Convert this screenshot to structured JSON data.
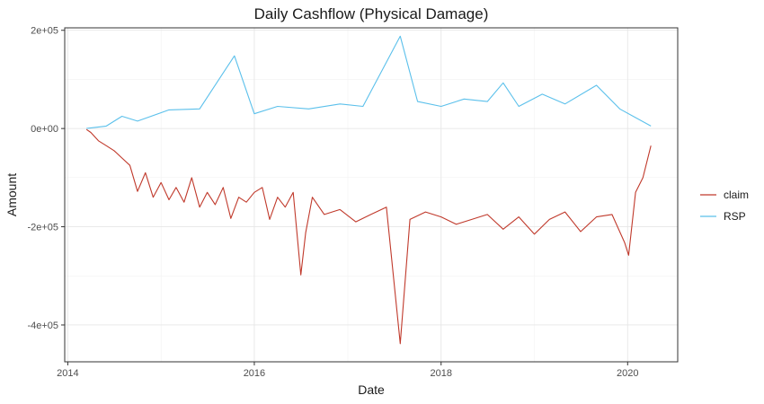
{
  "chart_data": {
    "type": "line",
    "title": "Daily Cashflow (Physical Damage)",
    "xlabel": "Date",
    "ylabel": "Amount",
    "x_range": [
      "2013-12-20",
      "2020-07-15"
    ],
    "ylim": [
      -475000,
      205000
    ],
    "x_ticks": [
      {
        "date": "2014-01-01",
        "label": "2014"
      },
      {
        "date": "2016-01-01",
        "label": "2016"
      },
      {
        "date": "2018-01-01",
        "label": "2018"
      },
      {
        "date": "2020-01-01",
        "label": "2020"
      }
    ],
    "y_ticks": [
      {
        "value": 200000,
        "label": "2e+05"
      },
      {
        "value": 0,
        "label": "0e+00"
      },
      {
        "value": -200000,
        "label": "-2e+05"
      },
      {
        "value": -400000,
        "label": "-4e+05"
      }
    ],
    "grid": true,
    "legend_position": "right",
    "series": [
      {
        "name": "claim",
        "color": "#C0392B",
        "points": [
          [
            "2014-03-15",
            -2000
          ],
          [
            "2014-04-01",
            -8000
          ],
          [
            "2014-05-01",
            -25000
          ],
          [
            "2014-06-01",
            -35000
          ],
          [
            "2014-07-01",
            -45000
          ],
          [
            "2014-08-01",
            -60000
          ],
          [
            "2014-09-01",
            -75000
          ],
          [
            "2014-10-01",
            -128000
          ],
          [
            "2014-11-01",
            -90000
          ],
          [
            "2014-12-01",
            -140000
          ],
          [
            "2015-01-01",
            -110000
          ],
          [
            "2015-02-01",
            -145000
          ],
          [
            "2015-03-01",
            -120000
          ],
          [
            "2015-04-01",
            -150000
          ],
          [
            "2015-05-01",
            -100000
          ],
          [
            "2015-06-01",
            -160000
          ],
          [
            "2015-07-01",
            -130000
          ],
          [
            "2015-08-01",
            -155000
          ],
          [
            "2015-09-01",
            -120000
          ],
          [
            "2015-10-01",
            -183000
          ],
          [
            "2015-11-01",
            -140000
          ],
          [
            "2015-12-01",
            -150000
          ],
          [
            "2016-01-01",
            -130000
          ],
          [
            "2016-02-01",
            -120000
          ],
          [
            "2016-03-01",
            -185000
          ],
          [
            "2016-04-01",
            -140000
          ],
          [
            "2016-05-01",
            -160000
          ],
          [
            "2016-06-01",
            -130000
          ],
          [
            "2016-07-01",
            -298000
          ],
          [
            "2016-07-20",
            -212000
          ],
          [
            "2016-08-15",
            -140000
          ],
          [
            "2016-10-01",
            -175000
          ],
          [
            "2016-12-01",
            -165000
          ],
          [
            "2017-02-01",
            -190000
          ],
          [
            "2017-04-01",
            -175000
          ],
          [
            "2017-06-01",
            -160000
          ],
          [
            "2017-07-25",
            -438000
          ],
          [
            "2017-09-01",
            -185000
          ],
          [
            "2017-11-01",
            -170000
          ],
          [
            "2018-01-01",
            -180000
          ],
          [
            "2018-03-01",
            -195000
          ],
          [
            "2018-05-01",
            -185000
          ],
          [
            "2018-07-01",
            -175000
          ],
          [
            "2018-09-01",
            -205000
          ],
          [
            "2018-11-01",
            -180000
          ],
          [
            "2019-01-01",
            -215000
          ],
          [
            "2019-03-01",
            -185000
          ],
          [
            "2019-05-01",
            -170000
          ],
          [
            "2019-07-01",
            -210000
          ],
          [
            "2019-09-01",
            -180000
          ],
          [
            "2019-11-01",
            -175000
          ],
          [
            "2019-12-20",
            -232000
          ],
          [
            "2020-01-05",
            -258000
          ],
          [
            "2020-02-01",
            -130000
          ],
          [
            "2020-03-01",
            -100000
          ],
          [
            "2020-04-01",
            -35000
          ]
        ]
      },
      {
        "name": "RSP",
        "color": "#5BC0EB",
        "points": [
          [
            "2014-03-15",
            0
          ],
          [
            "2014-06-01",
            5000
          ],
          [
            "2014-08-01",
            25000
          ],
          [
            "2014-10-01",
            15000
          ],
          [
            "2015-02-01",
            38000
          ],
          [
            "2015-06-01",
            40000
          ],
          [
            "2015-10-15",
            148000
          ],
          [
            "2016-01-01",
            30000
          ],
          [
            "2016-04-01",
            45000
          ],
          [
            "2016-08-01",
            40000
          ],
          [
            "2016-12-01",
            50000
          ],
          [
            "2017-03-01",
            45000
          ],
          [
            "2017-07-25",
            188000
          ],
          [
            "2017-10-01",
            55000
          ],
          [
            "2018-01-01",
            45000
          ],
          [
            "2018-04-01",
            60000
          ],
          [
            "2018-07-01",
            55000
          ],
          [
            "2018-09-01",
            93000
          ],
          [
            "2018-11-01",
            45000
          ],
          [
            "2019-02-01",
            70000
          ],
          [
            "2019-05-01",
            50000
          ],
          [
            "2019-09-01",
            88000
          ],
          [
            "2019-12-01",
            40000
          ],
          [
            "2020-04-01",
            5000
          ]
        ]
      }
    ]
  }
}
